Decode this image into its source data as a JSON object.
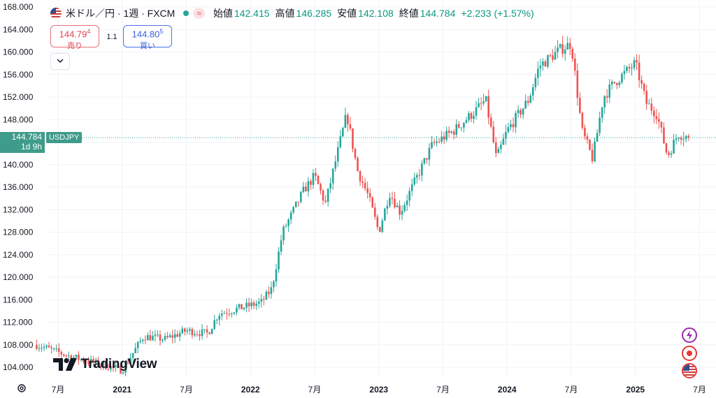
{
  "header": {
    "symbol_title": "米ドル／円 · 1週 · FXCM",
    "status_pill": "≈",
    "ohlc": [
      {
        "label": "始値",
        "value": "142.415"
      },
      {
        "label": "高値",
        "value": "146.285"
      },
      {
        "label": "安値",
        "value": "142.108"
      },
      {
        "label": "終値",
        "value": "144.784"
      }
    ],
    "change": "+2.233 (+1.57%)"
  },
  "trade": {
    "sell_price_main": "144.79",
    "sell_price_sup": "4",
    "sell_label": "売り",
    "buy_price_main": "144.80",
    "buy_price_sup": "5",
    "buy_label": "買い",
    "spread": "1.1",
    "collapse_icon": "chevron-down-icon"
  },
  "price_tag": {
    "price": "144.784",
    "countdown": "1d 9h",
    "ticker": "USDJPY"
  },
  "logo_text": "TradingView",
  "colors": {
    "up": "#26a69a",
    "down": "#ef5350",
    "grid": "#f0f3fa",
    "price_line": "#3f9b8a"
  },
  "side_icons": [
    "lightning-icon",
    "record-icon",
    "us-flag-icon"
  ],
  "chart_data": {
    "type": "candlestick",
    "ylim": [
      102,
      168
    ],
    "y_ticks": [
      "168.000",
      "164.000",
      "160.000",
      "156.000",
      "152.000",
      "148.000",
      "144.000",
      "140.000",
      "136.000",
      "132.000",
      "128.000",
      "124.000",
      "120.000",
      "116.000",
      "112.000",
      "108.000",
      "104.000"
    ],
    "x_ticks": [
      "7月",
      "2021",
      "7月",
      "2022",
      "7月",
      "2023",
      "7月",
      "2024",
      "7月",
      "2025",
      "7月"
    ],
    "x_range": [
      "2020-05",
      "2025-07"
    ],
    "last_close": 144.784,
    "anchors": [
      [
        "2020-05",
        108.0
      ],
      [
        "2020-08",
        106.0
      ],
      [
        "2020-11",
        104.5
      ],
      [
        "2021-01",
        103.5
      ],
      [
        "2021-03",
        109.5
      ],
      [
        "2021-05",
        109.0
      ],
      [
        "2021-07",
        110.5
      ],
      [
        "2021-09",
        110.0
      ],
      [
        "2021-10",
        113.5
      ],
      [
        "2021-12",
        114.5
      ],
      [
        "2022-02",
        115.5
      ],
      [
        "2022-03",
        118.0
      ],
      [
        "2022-04",
        128.0
      ],
      [
        "2022-06",
        135.5
      ],
      [
        "2022-07",
        138.0
      ],
      [
        "2022-08",
        133.0
      ],
      [
        "2022-10",
        149.0
      ],
      [
        "2022-11",
        139.0
      ],
      [
        "2022-12",
        134.5
      ],
      [
        "2023-01",
        128.0
      ],
      [
        "2023-02",
        135.0
      ],
      [
        "2023-03",
        131.5
      ],
      [
        "2023-05",
        139.5
      ],
      [
        "2023-06",
        143.5
      ],
      [
        "2023-08",
        146.0
      ],
      [
        "2023-10",
        149.5
      ],
      [
        "2023-11",
        151.5
      ],
      [
        "2023-12",
        141.0
      ],
      [
        "2024-01",
        146.0
      ],
      [
        "2024-03",
        151.5
      ],
      [
        "2024-04",
        157.5
      ],
      [
        "2024-06",
        160.5
      ],
      [
        "2024-07",
        161.5
      ],
      [
        "2024-08",
        146.0
      ],
      [
        "2024-09",
        141.0
      ],
      [
        "2024-10",
        152.0
      ],
      [
        "2024-11",
        154.5
      ],
      [
        "2025-01",
        158.0
      ],
      [
        "2025-02",
        151.0
      ],
      [
        "2025-03",
        149.0
      ],
      [
        "2025-04",
        141.5
      ],
      [
        "2025-05",
        145.5
      ],
      [
        "2025-06",
        144.784
      ]
    ]
  }
}
